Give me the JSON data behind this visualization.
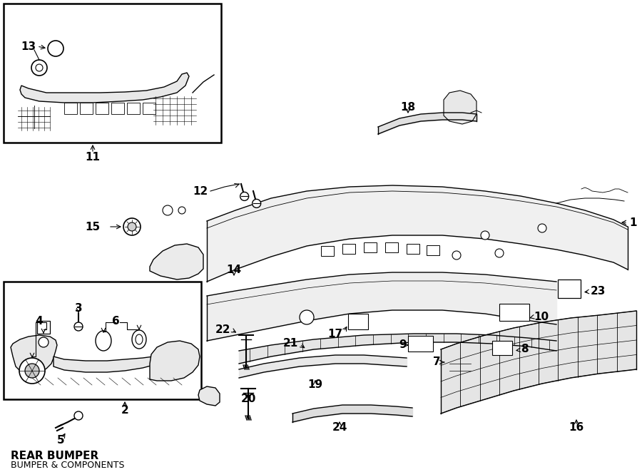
{
  "bg_color": "#ffffff",
  "line_color": "#000000",
  "fig_width": 9.0,
  "fig_height": 6.62,
  "dpi": 100,
  "title": "REAR BUMPER",
  "subtitle": "BUMPER & COMPONENTS",
  "label_fontsize": 11,
  "title_fontsize": 11
}
